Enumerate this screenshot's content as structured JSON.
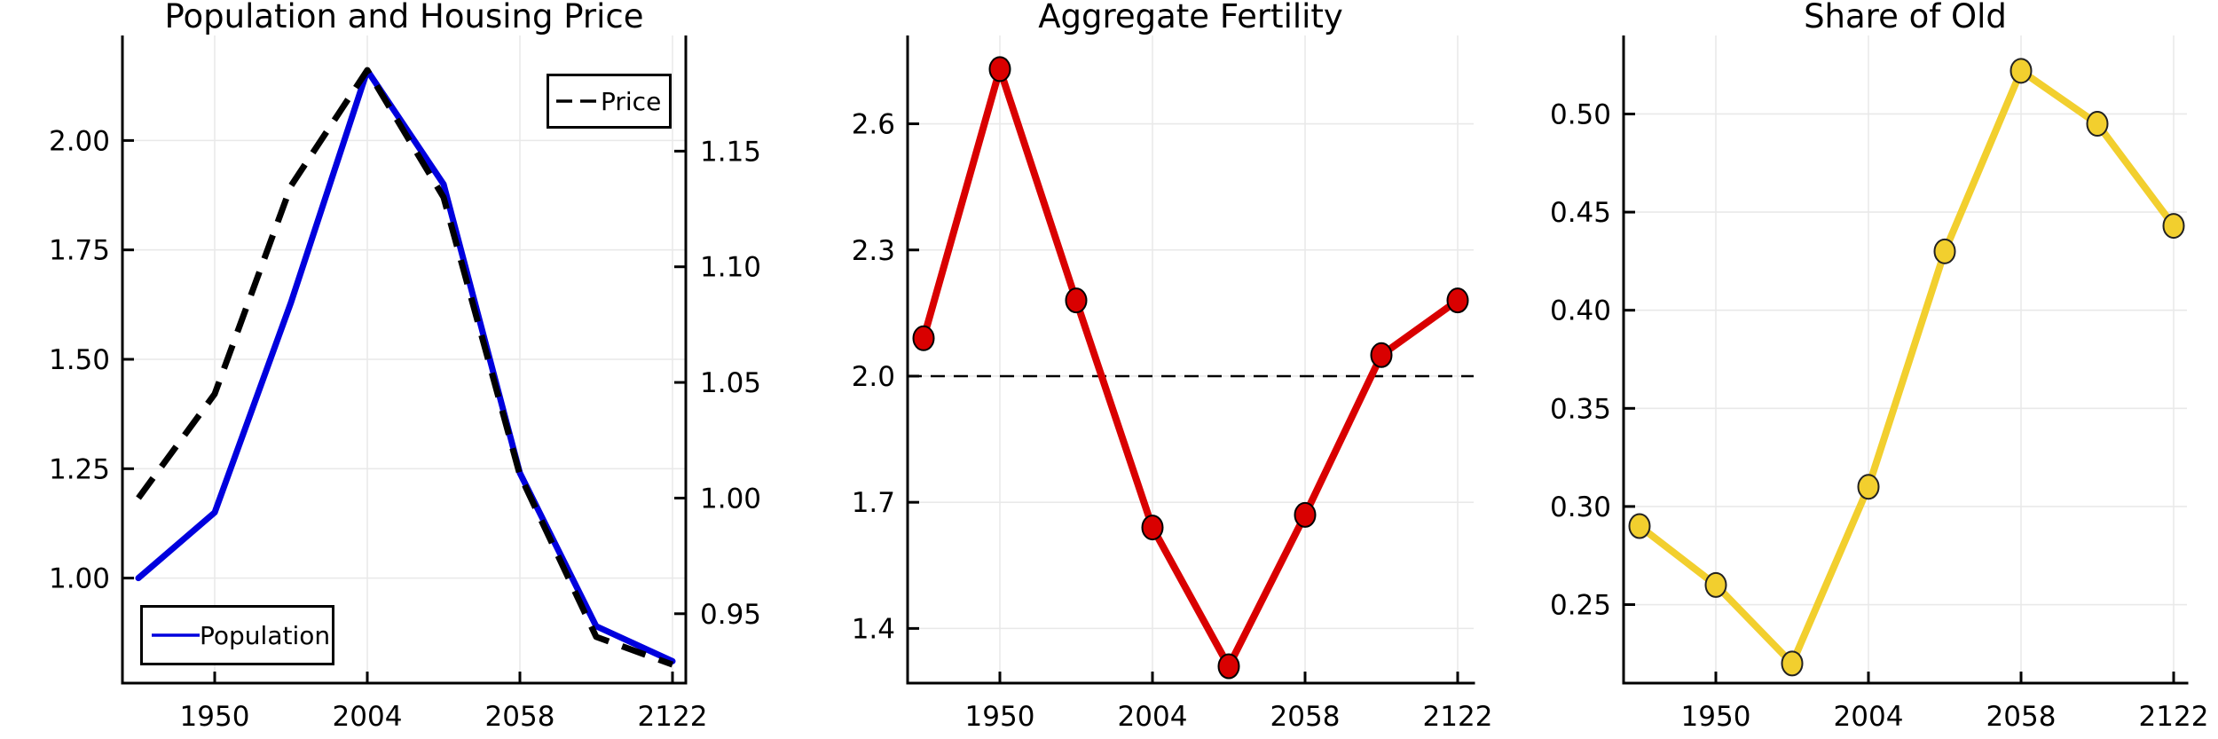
{
  "chart_data": [
    {
      "id": "population-housing-price",
      "type": "line",
      "title": "Population and Housing Price",
      "x_tick_labels": [
        "1950",
        "2004",
        "2058",
        "2122"
      ],
      "x_tick_point_indices": [
        1,
        3,
        5,
        7
      ],
      "num_points": 8,
      "grid": true,
      "left_axis": {
        "tick_labels": [
          "2.00",
          "1.75",
          "1.50",
          "1.25",
          "1.00"
        ],
        "tick_values": [
          2.0,
          1.75,
          1.5,
          1.25,
          1.0
        ],
        "range": [
          0.76,
          2.24
        ]
      },
      "right_axis": {
        "tick_labels": [
          "1.15",
          "1.10",
          "1.05",
          "1.00",
          "0.95"
        ],
        "tick_values": [
          1.15,
          1.1,
          1.05,
          1.0,
          0.95
        ],
        "range": [
          0.92,
          1.2
        ]
      },
      "series": [
        {
          "name": "Population",
          "axis": "left",
          "color": "#0000DE",
          "dash": false,
          "markers": false,
          "values": [
            1.0,
            1.15,
            1.63,
            2.16,
            1.9,
            1.24,
            0.89,
            0.81
          ]
        },
        {
          "name": "Price",
          "axis": "right",
          "color": "#000000",
          "dash": true,
          "markers": false,
          "values": [
            1.0,
            1.045,
            1.135,
            1.185,
            1.13,
            1.01,
            0.94,
            0.928
          ]
        }
      ],
      "legend_positions": [
        "top-right",
        "bottom-left"
      ]
    },
    {
      "id": "aggregate-fertility",
      "type": "line",
      "title": "Aggregate Fertility",
      "x_tick_labels": [
        "1950",
        "2004",
        "2058",
        "2122"
      ],
      "x_tick_point_indices": [
        1,
        3,
        5,
        7
      ],
      "num_points": 8,
      "grid": true,
      "left_axis": {
        "tick_labels": [
          "2.6",
          "2.3",
          "2.0",
          "1.7",
          "1.4"
        ],
        "tick_values": [
          2.6,
          2.3,
          2.0,
          1.7,
          1.4
        ],
        "range": [
          1.27,
          2.81
        ]
      },
      "reference_line": {
        "value": 2.0,
        "style": "dashed",
        "color": "#000000"
      },
      "series": [
        {
          "name": "Fertility",
          "axis": "left",
          "color": "#D90000",
          "dash": false,
          "markers": true,
          "marker_stroke": "#000000",
          "values": [
            2.09,
            2.73,
            2.18,
            1.64,
            1.31,
            1.67,
            2.05,
            2.18
          ]
        }
      ]
    },
    {
      "id": "share-of-old",
      "type": "line",
      "title": "Share of Old",
      "x_tick_labels": [
        "1950",
        "2004",
        "2058",
        "2122"
      ],
      "x_tick_point_indices": [
        1,
        3,
        5,
        7
      ],
      "num_points": 8,
      "grid": true,
      "left_axis": {
        "tick_labels": [
          "0.50",
          "0.45",
          "0.40",
          "0.35",
          "0.30",
          "0.25"
        ],
        "tick_values": [
          0.5,
          0.45,
          0.4,
          0.35,
          0.3,
          0.25
        ],
        "range": [
          0.21,
          0.54
        ]
      },
      "series": [
        {
          "name": "Share of Old",
          "axis": "left",
          "color": "#F2CF2E",
          "dash": false,
          "markers": true,
          "marker_stroke": "#222222",
          "values": [
            0.29,
            0.26,
            0.22,
            0.31,
            0.43,
            0.522,
            0.495,
            0.443
          ]
        }
      ]
    }
  ],
  "colors": {
    "population_line": "#0000DE",
    "price_line": "#000000",
    "fertility_line": "#D90000",
    "share_old_line": "#F2CF2E",
    "gridline": "#E9E9E9",
    "axis": "#000000"
  }
}
